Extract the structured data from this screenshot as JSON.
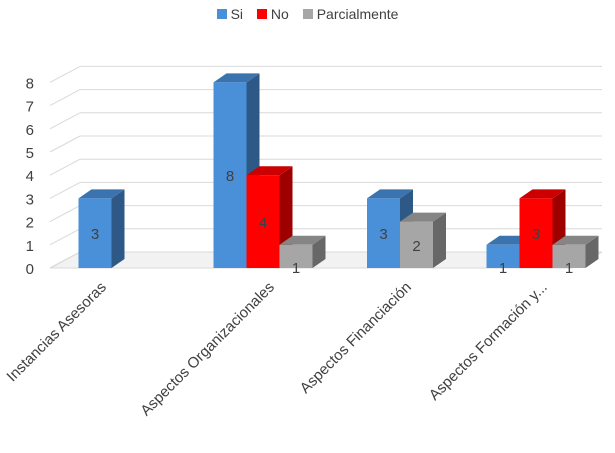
{
  "chart_data": {
    "type": "bar",
    "categories": [
      "Instancias Asesoras",
      "Aspectos Organizacionales",
      "Aspectos Financiación",
      "Aspectos Formación y..."
    ],
    "series": [
      {
        "name": "Si",
        "color": "#4a90d9",
        "values": [
          3,
          8,
          3,
          1
        ]
      },
      {
        "name": "No",
        "color": "#ff0000",
        "values": [
          null,
          4,
          null,
          3
        ]
      },
      {
        "name": "Parcialmente",
        "color": "#a6a6a6",
        "values": [
          null,
          1,
          2,
          1
        ]
      }
    ],
    "ylim": [
      0,
      8
    ],
    "yticks": [
      "0",
      "1",
      "2",
      "3",
      "4",
      "5",
      "6",
      "7",
      "8"
    ],
    "legend_position": "top-center",
    "grid": true,
    "style": "3d-clustered-column"
  }
}
